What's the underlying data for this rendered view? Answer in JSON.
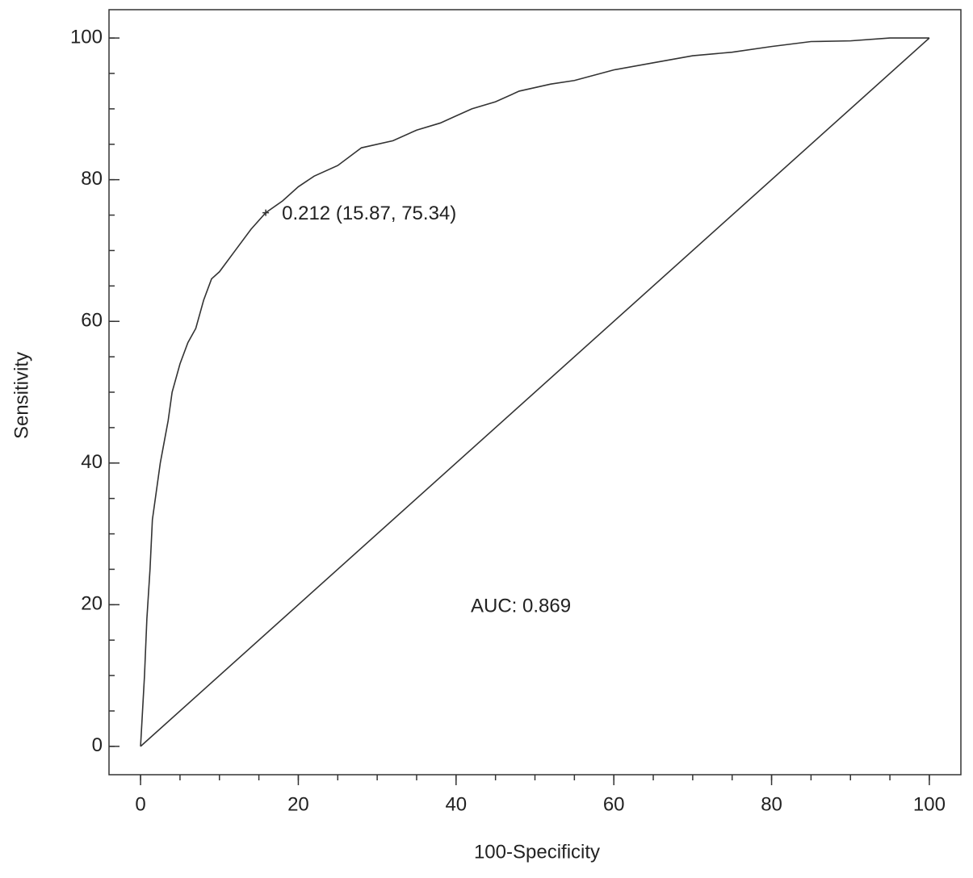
{
  "chart_data": {
    "type": "line",
    "xlabel": "100-Specificity",
    "ylabel": "Sensitivity",
    "xlim": [
      -4,
      104
    ],
    "ylim": [
      -4,
      104
    ],
    "xticks": [
      0,
      20,
      40,
      60,
      80,
      100
    ],
    "yticks": [
      0,
      20,
      40,
      60,
      80,
      100
    ],
    "xminorticks": [
      0,
      5,
      10,
      15,
      20,
      25,
      30,
      35,
      40,
      45,
      50,
      55,
      60,
      65,
      70,
      75,
      80,
      85,
      90,
      95,
      100
    ],
    "yminorticks": [
      0,
      5,
      10,
      15,
      20,
      25,
      30,
      35,
      40,
      45,
      50,
      55,
      60,
      65,
      70,
      75,
      80,
      85,
      90,
      95,
      100
    ],
    "series": [
      {
        "color": "#333333",
        "x": [
          0,
          0.2,
          0.5,
          0.8,
          1.2,
          1.5,
          2,
          2.5,
          3,
          3.5,
          4,
          5,
          6,
          7,
          8,
          9,
          10,
          12,
          14,
          15.87,
          18,
          20,
          22,
          25,
          28,
          32,
          35,
          38,
          40,
          42,
          45,
          48,
          52,
          55,
          60,
          65,
          70,
          75,
          80,
          85,
          90,
          95,
          100
        ],
        "values": [
          0,
          4,
          10,
          18,
          25,
          32,
          36,
          40,
          43,
          46,
          50,
          54,
          57,
          59,
          63,
          66,
          67,
          70,
          73,
          75.34,
          77,
          79,
          80.5,
          82,
          84.5,
          85.5,
          87,
          88,
          89,
          90,
          91,
          92.5,
          93.5,
          94,
          95.5,
          96.5,
          97.5,
          98,
          98.8,
          99.5,
          99.6,
          100,
          100
        ]
      },
      {
        "color": "#333333",
        "x": [
          0,
          100
        ],
        "values": [
          0,
          100
        ]
      }
    ],
    "cutoff_point": {
      "label": "0.212 (15.87, 75.34)",
      "x": 15.87,
      "y": 75.34
    },
    "annotation": "AUC: 0.869"
  }
}
